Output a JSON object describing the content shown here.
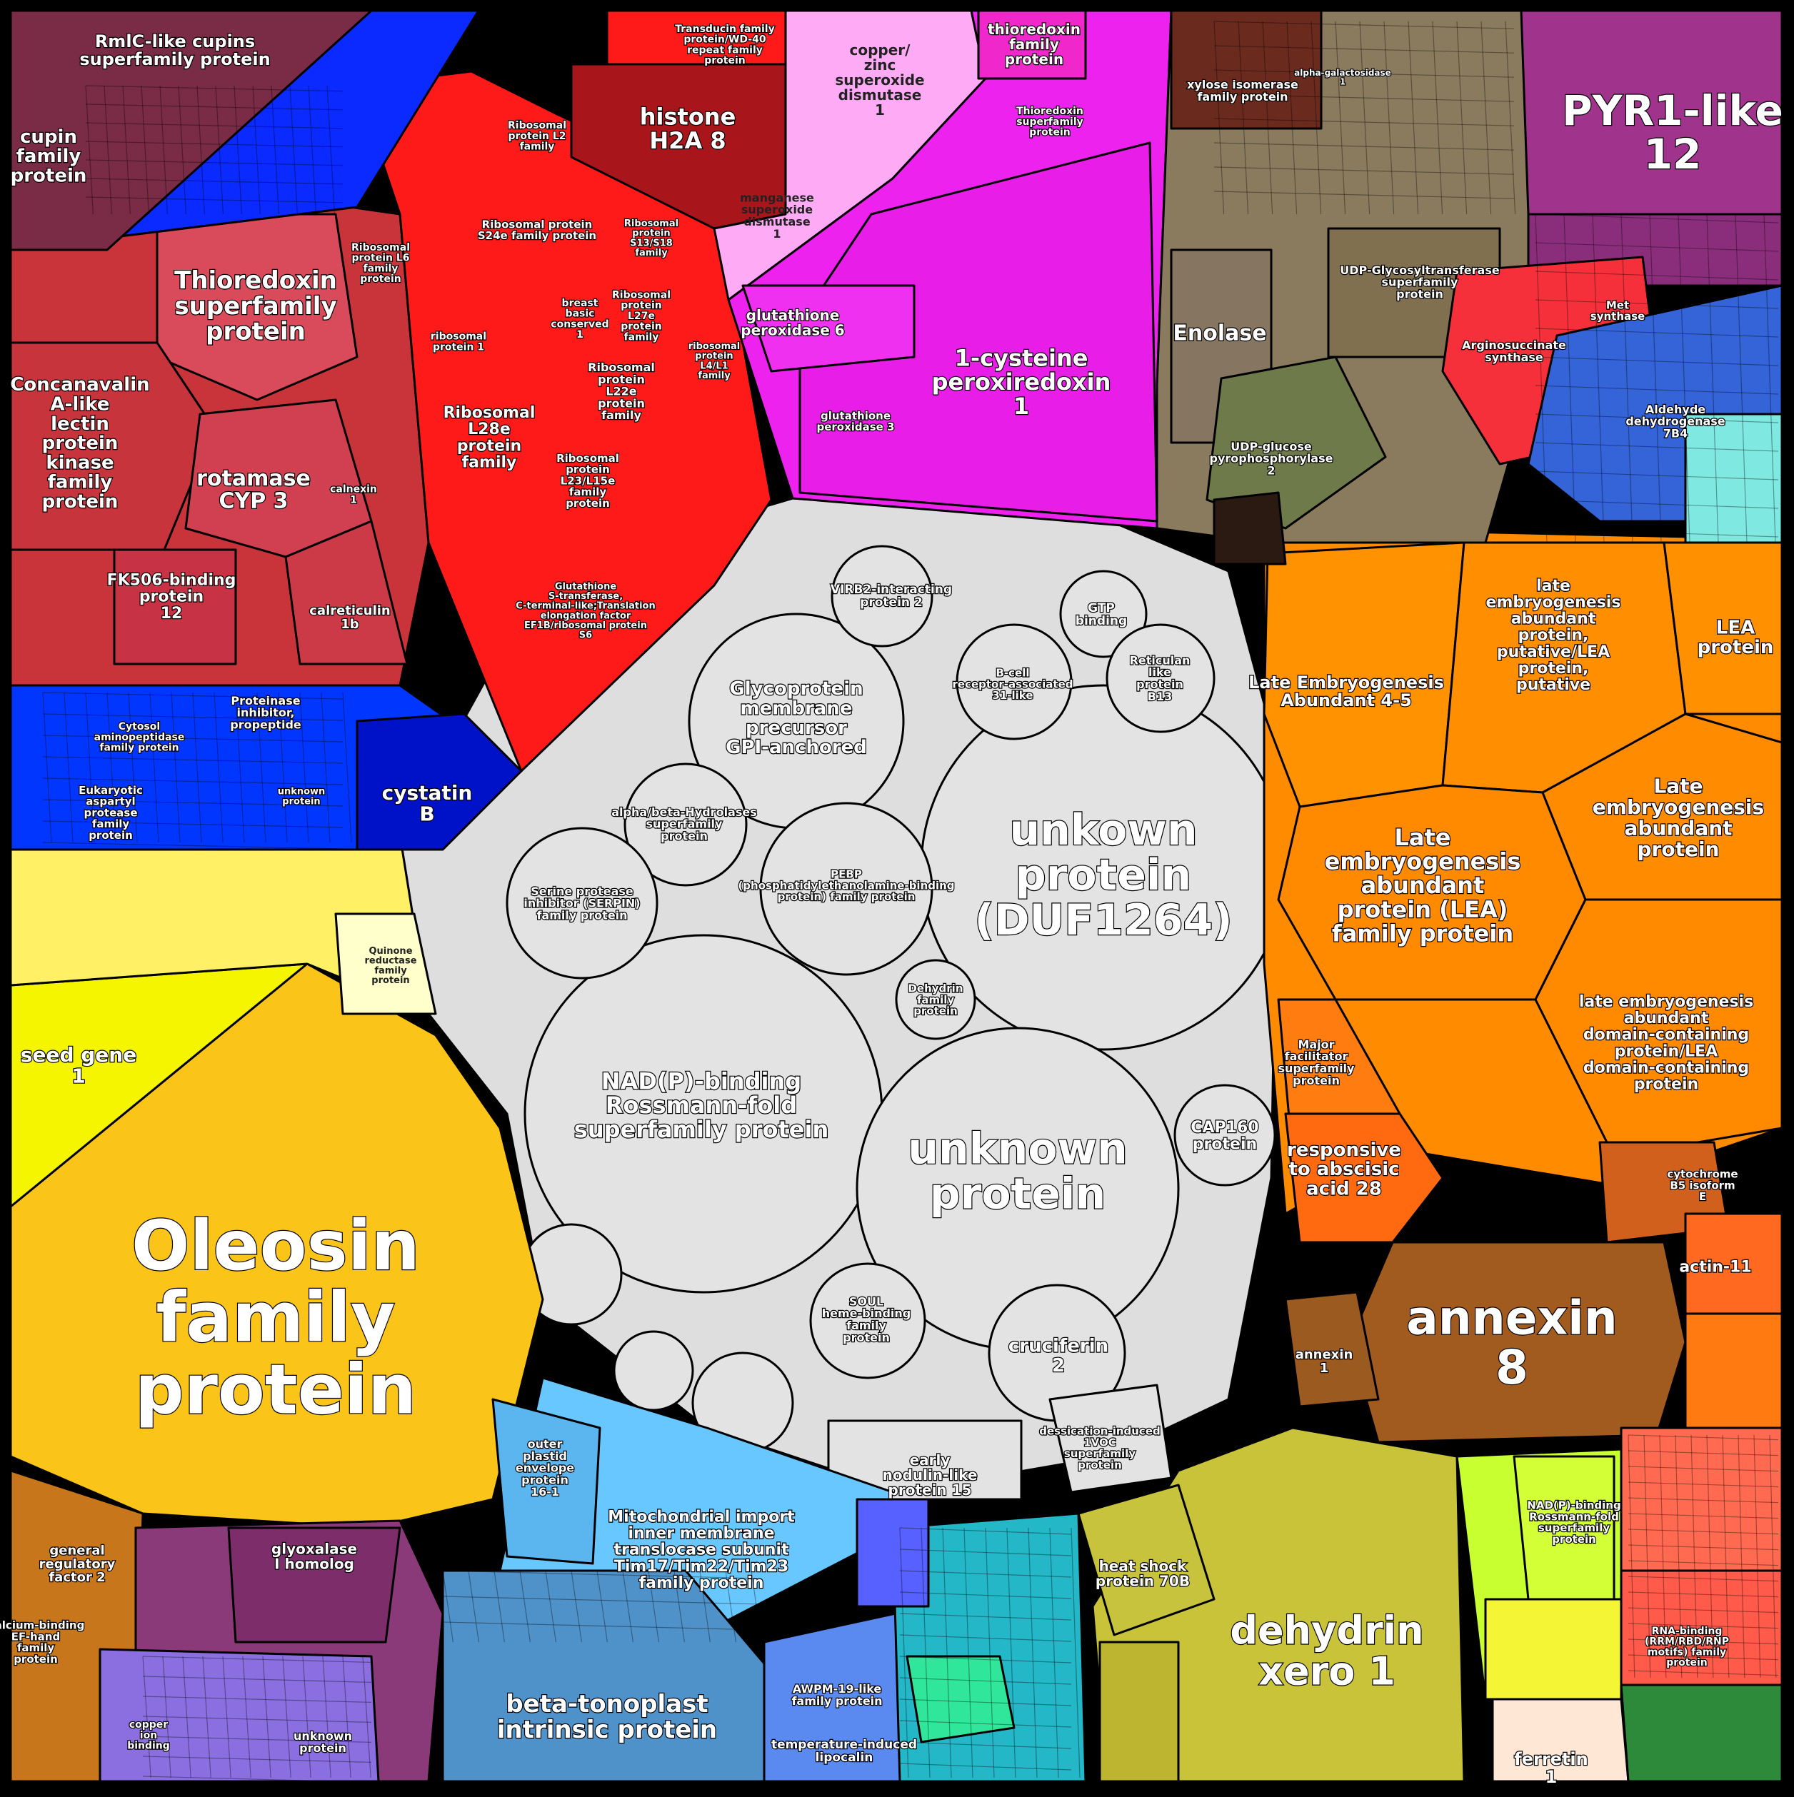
{
  "diagram": {
    "colors": {
      "grey": "#e3e3e3",
      "orange": "#ff8c00",
      "yellow": "#fbc419",
      "brightYellow": "#f6f500",
      "red": "#ff1a1a",
      "rose": "#d94a5a",
      "magenta": "#ee22ee",
      "pink": "#ffaaf5",
      "blue": "#0036ff",
      "lightBlue": "#69c7ff",
      "steelBlue": "#4f92c9",
      "olive": "#c9c33a",
      "lime": "#ccff33",
      "brown": "#9a5b20",
      "taupe": "#8a7a5e",
      "darkOlive": "#6f7a4a",
      "purple": "#a0338b",
      "plum": "#8a3a78",
      "maroon": "#8c3340",
      "salmon": "#ff6a50",
      "teal": "#23b7c7",
      "green": "#30e69a"
    },
    "regions": {
      "cupins": {
        "large": "RmlC-like cupins superfamily protein",
        "small": "cupin family protein"
      },
      "thioredoxinSF": "Thioredoxin superfamily protein",
      "concanavalin": "Concanavalin A-like lectin protein kinase family protein",
      "rotamase": "rotamase CYP 3",
      "fk506": "FK506-binding protein 12",
      "calreticulin": "calreticulin 1b",
      "calnexin": "calnexin 1",
      "ribosomal": [
        "Ribosomal protein L2 family",
        "Ribosomal protein S24e family protein",
        "Ribosomal protein S13/S18 family",
        "Ribosomal protein L6 family protein",
        "breast basic conserved 1",
        "Ribosomal protein L27e protein family",
        "Ribosomal protein L22e protein family",
        "Ribosomal L28e protein family",
        "Ribosomal protein L23/L15e family protein",
        "ribosomal protein 1",
        "ribosomal protein L4/L1 family",
        "Glutathione S-transferase, C-terminal-like;Translation elongation factor EF1B/ribosomal protein S6"
      ],
      "histone": "histone H2A 8",
      "transducin": "Transducin family protein/WD-40 repeat family protein",
      "copperZinc": "copper/ zinc superoxide dismutase 1",
      "manganese": "manganese superoxide dismutase 1",
      "thioredoxinFam": "thioredoxin family protein",
      "thioredoxinSF2": "Thioredoxin superfamily protein",
      "glutathionePerox6": "glutathione peroxidase 6",
      "glutathionePerox3": "glutathione peroxidase 3",
      "cysteinePerox": "1-cysteine peroxiredoxin 1",
      "xylose": "xylose isomerase family protein",
      "alphaGal": "alpha-galactosidase 1",
      "enolase": "Enolase",
      "udpGlyco": "UDP-Glycosyltransferase superfamily protein",
      "udpGlucose": "UDP-glucose pyrophosphorylase 2",
      "pyr1": "PYR1-like 12",
      "arginosuccinate": "Arginosuccinate synthase",
      "metSynth": "Met synthase",
      "aldehyde": "Aldehyde dehydrogenase 7B4",
      "cytosolAmino": "Cytosol aminopeptidase family protein",
      "proteinase": "Proteinase inhibitor, propeptide",
      "eukaryotic": "Eukaryotic aspartyl protease family protein",
      "unknownBlue": "unknown protein",
      "cystatin": "cystatin B",
      "seedGene": "seed gene 1",
      "oleosin": "Oleosin family protein",
      "quinone": "Quinone reductase family protein",
      "glycoprotein": "Glycoprotein membrane precursor GPI-anchored",
      "vir": "VIRB2-interacting protein 2",
      "gtp": "GTP binding",
      "reticulan": "Reticulan like protein B13",
      "bcell": "B-cell receptor-associated 31-like",
      "alphaBeta": "alpha/beta-Hydrolases superfamily protein",
      "serpin": "Serine protease inhibitor (SERPIN) family protein",
      "pebp": "PEBP (phosphatidylethanolamine-binding protein) family protein",
      "duf1264": "unkown protein (DUF1264)",
      "nadp": "NAD(P)-binding Rossmann-fold superfamily protein",
      "dehydrinFam": "Dehydrin family protein",
      "unknownGrey": "unknown protein",
      "cap160": "CAP160 protein",
      "soul": "SOUL heme-binding family protein",
      "cruciferin": "cruciferin 2",
      "earlyNodulin": "early nodulin-like protein 15",
      "desiccation": "dessication-induced 1VOC superfamily protein",
      "lea45": "Late Embryogenesis Abundant 4-5",
      "lateEmbryoPutative": "late embryogenesis abundant protein, putative/LEA protein, putative",
      "leaProtein": "LEA protein",
      "leaFamily": "Late embryogenesis abundant protein (LEA) family protein",
      "lateEmbryoAbundant": "Late embryogenesis abundant protein",
      "lateEmbryoDomain": "late embryogenesis abundant domain-containing protein/LEA domain-containing protein",
      "majorFacilitator": "Major facilitator superfamily protein",
      "responsiveAba": "responsive to abscisic acid 28",
      "cytochrome": "cytochrome B5 isoform E",
      "annexin8": "annexin 8",
      "annexin1": "annexin 1",
      "actin": "actin-11",
      "mitochondrial": "Mitochondrial import inner membrane translocase subunit Tim17/Tim22/Tim23 family protein",
      "outerPlastid": "outer plastid envelope protein 16-1",
      "betaTonoplast": "beta-tonoplast intrinsic protein",
      "awpm": "AWPM-19-like family protein",
      "temperature": "temperature-induced lipocalin",
      "heatShock": "heat shock protein 70B",
      "dehydrinXero": "dehydrin xero 1",
      "nadpLime": "NAD(P)-binding Rossmann-fold superfamily protein",
      "ferretin": "ferretin 1",
      "rnaBinding": "RNA-binding (RRM/RBD/RNP motifs) family protein",
      "generalReg": "general regulatory factor 2",
      "glyoxalase": "glyoxalase I homolog",
      "calcium": "Calcium-binding EF-hand family protein",
      "copperIon": "copper ion binding",
      "unknownPurple": "unknown protein"
    }
  }
}
